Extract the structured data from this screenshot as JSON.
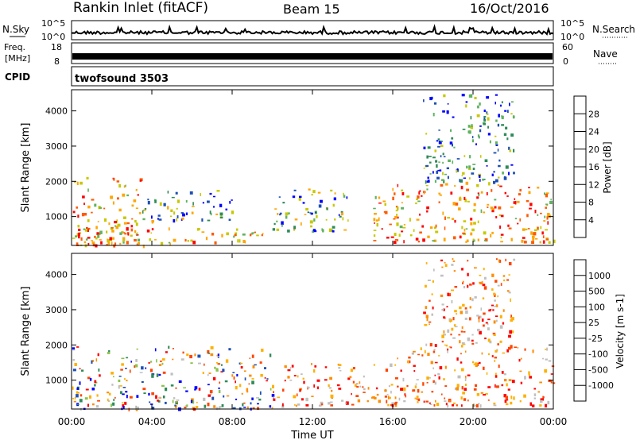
{
  "header": {
    "station": "Rankin Inlet (fitACF)",
    "beam": "Beam 15",
    "date": "16/Oct/2016"
  },
  "noise_panel": {
    "left_label": "N.Sky",
    "right_label": "N.Search",
    "y_ticks_left": [
      "10^5",
      "10^0"
    ],
    "y_ticks_right": [
      "10^5",
      "10^0"
    ]
  },
  "freq_panel": {
    "left_label_line1": "Freq.",
    "left_label_line2": "[MHz]",
    "right_label": "Nave",
    "y_ticks_left": [
      "18",
      "8"
    ],
    "y_ticks_right": [
      "60",
      "0"
    ]
  },
  "cpid_panel": {
    "label": "CPID",
    "program": "twofsound 3503"
  },
  "colors": {
    "power": [
      "#0000ff",
      "#1e50b4",
      "#2e8b57",
      "#5fb35f",
      "#c8c800",
      "#ffa500",
      "#ff5a00",
      "#ff0000"
    ],
    "velocity": [
      "#ff0000",
      "#ff4500",
      "#ff8c00",
      "#ffb000",
      "#c0c0c0",
      "#8bc34a",
      "#2e8b57",
      "#1e50b4",
      "#0000ff"
    ]
  },
  "chart_data": [
    {
      "type": "heatmap",
      "parameter": "power",
      "ylabel": "Slant Range [km]",
      "yticks": [
        1000,
        2000,
        3000,
        4000
      ],
      "ylim": [
        180,
        4600
      ],
      "colorbar": {
        "label": "Power [dB]",
        "ticks": [
          "4",
          "8",
          "12",
          "16",
          "20",
          "24",
          "28"
        ]
      },
      "echo_regions": [
        {
          "t": [
            0,
            3.5
          ],
          "range": [
            200,
            2200
          ],
          "level": "high"
        },
        {
          "t": [
            0,
            10
          ],
          "range": [
            200,
            700
          ],
          "level": "high"
        },
        {
          "t": [
            3.5,
            8
          ],
          "range": [
            900,
            1800
          ],
          "level": "medium"
        },
        {
          "t": [
            10,
            14
          ],
          "range": [
            600,
            1800
          ],
          "level": "medium"
        },
        {
          "t": [
            15,
            24
          ],
          "range": [
            300,
            2000
          ],
          "level": "high"
        },
        {
          "t": [
            17.5,
            22
          ],
          "range": [
            2000,
            4500
          ],
          "level": "low"
        }
      ]
    },
    {
      "type": "heatmap",
      "parameter": "velocity",
      "ylabel": "Slant Range [km]",
      "yticks": [
        1000,
        2000,
        3000,
        4000
      ],
      "ylim": [
        180,
        4600
      ],
      "xlabel": "Time UT",
      "xticks": [
        "00:00",
        "04:00",
        "08:00",
        "12:00",
        "16:00",
        "20:00",
        "00:00"
      ],
      "colorbar": {
        "label": "Velocity [m s-1]",
        "ticks": [
          "1000",
          "500",
          "100",
          "25",
          "-25",
          "-100",
          "-500",
          "-1000"
        ]
      },
      "echo_regions": [
        {
          "t": [
            0,
            10
          ],
          "range": [
            200,
            2000
          ],
          "level": "mixed"
        },
        {
          "t": [
            10,
            16
          ],
          "range": [
            300,
            1500
          ],
          "level": "negative"
        },
        {
          "t": [
            16,
            24
          ],
          "range": [
            300,
            2000
          ],
          "level": "negative"
        },
        {
          "t": [
            17.5,
            22
          ],
          "range": [
            2000,
            4500
          ],
          "level": "negative"
        }
      ]
    }
  ]
}
